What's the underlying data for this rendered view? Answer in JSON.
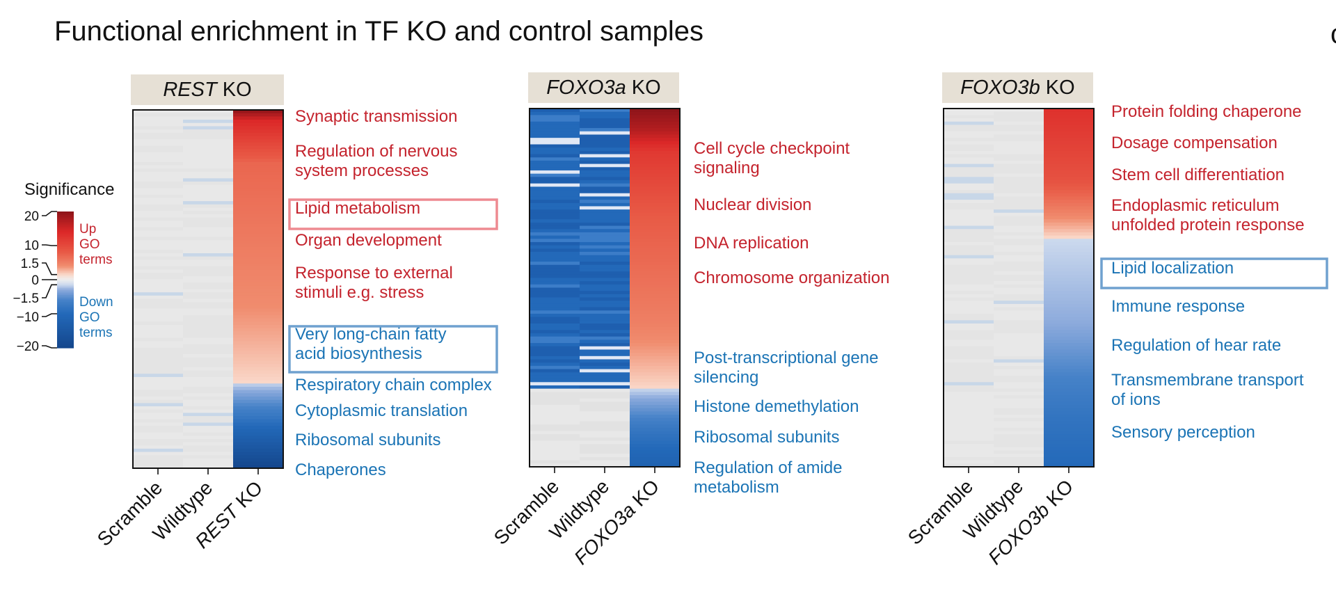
{
  "title": "Functional enrichment in TF KO and control samples",
  "edge_glyph": "c",
  "chart_data": {
    "type": "heatmap",
    "title": "Functional enrichment in TF KO and control samples",
    "legend": {
      "title": "Significance",
      "ticks": [
        "20",
        "10",
        "1.5",
        "0",
        "−1.5",
        "−10",
        "−20"
      ],
      "tick_values": [
        20,
        10,
        1.5,
        0,
        -1.5,
        -10,
        -20
      ],
      "range": [
        -20,
        20
      ],
      "up_label": [
        "Up",
        "GO",
        "terms"
      ],
      "down_label": [
        "Down",
        "GO",
        "terms"
      ],
      "up_color": "#c4232d",
      "down_color": "#1b74b5",
      "placement": "left"
    },
    "panels": [
      {
        "id": "rest",
        "header": {
          "gene": "REST",
          "suffix": " KO"
        },
        "columns": [
          {
            "label": "Scramble",
            "italic": ""
          },
          {
            "label": "Wildtype",
            "italic": ""
          },
          {
            "label": " KO",
            "italic": "REST"
          }
        ],
        "up_fraction": 0.76,
        "ko_profile": [
          [
            0,
            20
          ],
          [
            0.03,
            14
          ],
          [
            0.15,
            7
          ],
          [
            0.55,
            4
          ],
          [
            0.76,
            1.5
          ],
          [
            0.761,
            -1.5
          ],
          [
            0.86,
            -8
          ],
          [
            1.0,
            -20
          ]
        ],
        "control_pattern": "sparse",
        "terms": [
          {
            "label": "Synaptic transmission",
            "lines": [
              "Synaptic transmission"
            ],
            "direction": "up",
            "boxed": false
          },
          {
            "label": "Regulation of nervous system processes",
            "lines": [
              "Regulation of nervous",
              "system processes"
            ],
            "direction": "up",
            "boxed": false
          },
          {
            "label": "Lipid metabolism",
            "lines": [
              "Lipid metabolism"
            ],
            "direction": "up",
            "boxed": true
          },
          {
            "label": "Organ development",
            "lines": [
              "Organ development"
            ],
            "direction": "up",
            "boxed": false
          },
          {
            "label": "Response to external stimuli e.g. stress",
            "lines": [
              "Response to external",
              "stimuli e.g. stress"
            ],
            "direction": "up",
            "boxed": false
          },
          {
            "label": "Very long-chain fatty acid biosynthesis",
            "lines": [
              "Very long-chain fatty",
              "acid biosynthesis"
            ],
            "direction": "down",
            "boxed": true
          },
          {
            "label": "Respiratory chain complex",
            "lines": [
              "Respiratory chain complex"
            ],
            "direction": "down",
            "boxed": false
          },
          {
            "label": "Cytoplasmic translation",
            "lines": [
              "Cytoplasmic translation"
            ],
            "direction": "down",
            "boxed": false
          },
          {
            "label": "Ribosomal subunits",
            "lines": [
              "Ribosomal subunits"
            ],
            "direction": "down",
            "boxed": false
          },
          {
            "label": "Chaperones",
            "lines": [
              "Chaperones"
            ],
            "direction": "down",
            "boxed": false
          }
        ]
      },
      {
        "id": "foxo3a",
        "header": {
          "gene": "FOXO3a",
          "suffix": " KO"
        },
        "columns": [
          {
            "label": "Scramble",
            "italic": ""
          },
          {
            "label": "Wildtype",
            "italic": ""
          },
          {
            "label": " KO",
            "italic": "FOXO3a"
          }
        ],
        "up_fraction": 0.78,
        "ko_profile": [
          [
            0,
            20
          ],
          [
            0.06,
            17
          ],
          [
            0.12,
            12
          ],
          [
            0.3,
            8
          ],
          [
            0.6,
            5
          ],
          [
            0.78,
            1.5
          ],
          [
            0.781,
            -1.5
          ],
          [
            0.9,
            -8
          ],
          [
            1.0,
            -12
          ]
        ],
        "control_pattern": "blue-block",
        "terms": [
          {
            "label": "Cell cycle checkpoint signaling",
            "lines": [
              "Cell cycle checkpoint",
              "signaling"
            ],
            "direction": "up",
            "boxed": false
          },
          {
            "label": "Nuclear division",
            "lines": [
              "Nuclear division"
            ],
            "direction": "up",
            "boxed": false
          },
          {
            "label": "DNA replication",
            "lines": [
              "DNA replication"
            ],
            "direction": "up",
            "boxed": false
          },
          {
            "label": "Chromosome organization",
            "lines": [
              "Chromosome organization"
            ],
            "direction": "up",
            "boxed": false
          },
          {
            "label": "Post-transcriptional gene silencing",
            "lines": [
              "Post-transcriptional gene",
              "silencing"
            ],
            "direction": "down",
            "boxed": false
          },
          {
            "label": "Histone demethylation",
            "lines": [
              "Histone demethylation"
            ],
            "direction": "down",
            "boxed": false
          },
          {
            "label": "Ribosomal subunits",
            "lines": [
              "Ribosomal subunits"
            ],
            "direction": "down",
            "boxed": false
          },
          {
            "label": "Regulation of amide metabolism",
            "lines": [
              "Regulation of amide",
              "metabolism"
            ],
            "direction": "down",
            "boxed": false
          }
        ]
      },
      {
        "id": "foxo3b",
        "header": {
          "gene": "FOXO3b",
          "suffix": " KO"
        },
        "columns": [
          {
            "label": "Scramble",
            "italic": ""
          },
          {
            "label": "Wildtype",
            "italic": ""
          },
          {
            "label": " KO",
            "italic": "FOXO3b"
          }
        ],
        "up_fraction": 0.36,
        "ko_profile": [
          [
            0,
            13
          ],
          [
            0.2,
            9
          ],
          [
            0.36,
            1.5
          ],
          [
            0.361,
            -1.5
          ],
          [
            0.6,
            -3
          ],
          [
            0.85,
            -8
          ],
          [
            1.0,
            -10
          ]
        ],
        "control_pattern": "sparse-grey",
        "terms": [
          {
            "label": "Protein folding chaperone",
            "lines": [
              "Protein folding chaperone"
            ],
            "direction": "up",
            "boxed": false
          },
          {
            "label": "Dosage compensation",
            "lines": [
              "Dosage compensation"
            ],
            "direction": "up",
            "boxed": false
          },
          {
            "label": "Stem cell differentiation",
            "lines": [
              "Stem cell differentiation"
            ],
            "direction": "up",
            "boxed": false
          },
          {
            "label": "Endoplasmic reticulum unfolded protein response",
            "lines": [
              "Endoplasmic reticulum",
              "unfolded protein response"
            ],
            "direction": "up",
            "boxed": false
          },
          {
            "label": "Lipid localization",
            "lines": [
              "Lipid localization"
            ],
            "direction": "down",
            "boxed": true
          },
          {
            "label": "Immune response",
            "lines": [
              "Immune response"
            ],
            "direction": "down",
            "boxed": false
          },
          {
            "label": "Regulation of hear rate",
            "lines": [
              "Regulation of hear rate"
            ],
            "direction": "down",
            "boxed": false
          },
          {
            "label": "Transmembrane transport of ions",
            "lines": [
              "Transmembrane transport",
              "of ions"
            ],
            "direction": "down",
            "boxed": false
          },
          {
            "label": "Sensory perception",
            "lines": [
              "Sensory perception"
            ],
            "direction": "down",
            "boxed": false
          }
        ]
      }
    ]
  },
  "colors": {
    "up_term": "#c4232d",
    "down_term": "#1b74b5",
    "header_bg": "#e6e0d5",
    "box_up": "#ee8a91",
    "box_down": "#6fa1cf",
    "control_grey": "#e8e8e8"
  }
}
